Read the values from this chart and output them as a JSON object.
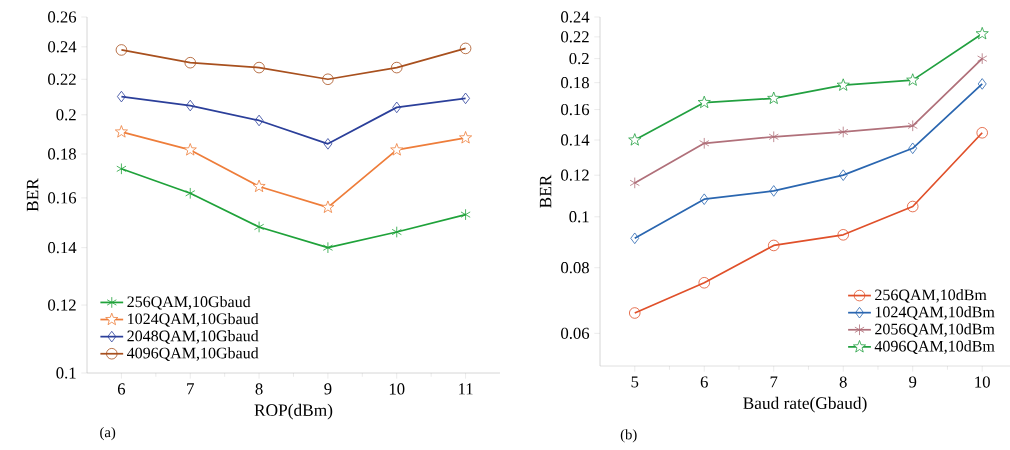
{
  "chart_data": [
    {
      "type": "line",
      "xlabel": "ROP(dBm)",
      "ylabel": "BER",
      "annotations": [
        "(a)"
      ],
      "x": [
        6,
        7,
        8,
        9,
        10,
        11
      ],
      "xlim": [
        5.5,
        11.5
      ],
      "xticks": [
        6,
        7,
        8,
        9,
        10,
        11
      ],
      "log": "y",
      "ylim": [
        0.1,
        0.26
      ],
      "yticks": [
        0.1,
        0.12,
        0.14,
        0.16,
        0.18,
        0.2,
        0.22,
        0.24,
        0.26
      ],
      "grid": false,
      "legend": "bottom left",
      "line_style": "solid",
      "series": [
        {
          "name": "256QAM,10Gbaud",
          "color": "#1fa23a",
          "marker": "cross",
          "values": [
            0.173,
            0.162,
            0.148,
            0.14,
            0.146,
            0.153
          ]
        },
        {
          "name": "1024QAM,10Gbaud",
          "color": "#ee7d3a",
          "marker": "star",
          "values": [
            0.191,
            0.182,
            0.165,
            0.156,
            0.182,
            0.188
          ]
        },
        {
          "name": "2048QAM,10Gbaud",
          "color": "#2b3f9a",
          "marker": "diamond",
          "values": [
            0.21,
            0.205,
            0.197,
            0.185,
            0.204,
            0.209
          ]
        },
        {
          "name": "4096QAM,10Gbaud",
          "color": "#a8501e",
          "marker": "circle",
          "values": [
            0.238,
            0.23,
            0.227,
            0.22,
            0.227,
            0.239
          ]
        }
      ]
    },
    {
      "type": "line",
      "xlabel": "Baud rate(Gbaud)",
      "ylabel": "BER",
      "annotations": [
        "(b)"
      ],
      "x": [
        5,
        6,
        7,
        8,
        9,
        10
      ],
      "xlim": [
        4.5,
        10.4
      ],
      "xticks": [
        5,
        6,
        7,
        8,
        9,
        10
      ],
      "log": "y",
      "ylim": [
        0.052,
        0.24
      ],
      "yticks": [
        0.06,
        0.08,
        0.1,
        0.12,
        0.14,
        0.16,
        0.18,
        0.2,
        0.22,
        0.24
      ],
      "grid": false,
      "legend": "bottom right",
      "line_style": "solid",
      "series": [
        {
          "name": "256QAM,10dBm",
          "color": "#e0502a",
          "marker": "circle",
          "values": [
            0.0656,
            0.0749,
            0.0882,
            0.0924,
            0.1046,
            0.1445
          ]
        },
        {
          "name": "1024QAM,10dBm",
          "color": "#2a66b0",
          "marker": "diamond",
          "values": [
            0.091,
            0.108,
            0.112,
            0.12,
            0.135,
            0.179
          ]
        },
        {
          "name": "2056QAM,10dBm",
          "color": "#b0707a",
          "marker": "cross",
          "values": [
            0.116,
            0.138,
            0.142,
            0.145,
            0.149,
            0.2
          ]
        },
        {
          "name": "4096QAM,10dBm",
          "color": "#22a040",
          "marker": "star",
          "values": [
            0.14,
            0.165,
            0.168,
            0.178,
            0.182,
            0.223
          ]
        }
      ]
    }
  ]
}
